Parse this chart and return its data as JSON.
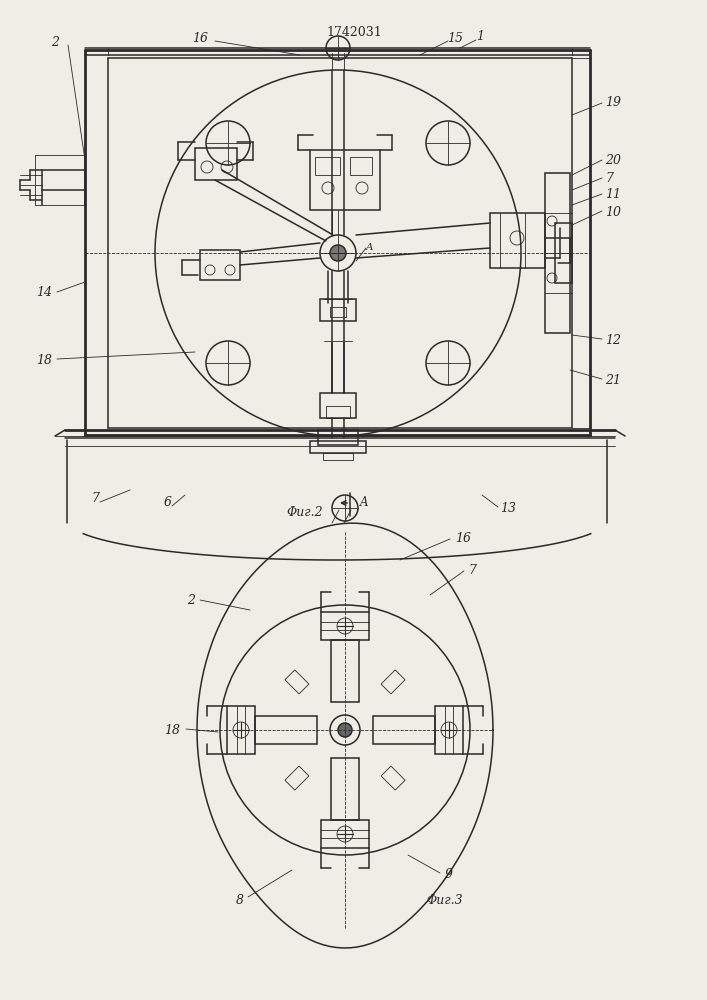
{
  "title": "1742031",
  "bg_color": "#f0ede6",
  "line_color": "#2a2a2a",
  "fig2_label": "Φиг.2",
  "fig3_label": "Φиг.3",
  "fig_width": 7.07,
  "fig_height": 10.0,
  "lw_main": 1.1,
  "lw_thick": 2.0,
  "lw_thin": 0.6
}
